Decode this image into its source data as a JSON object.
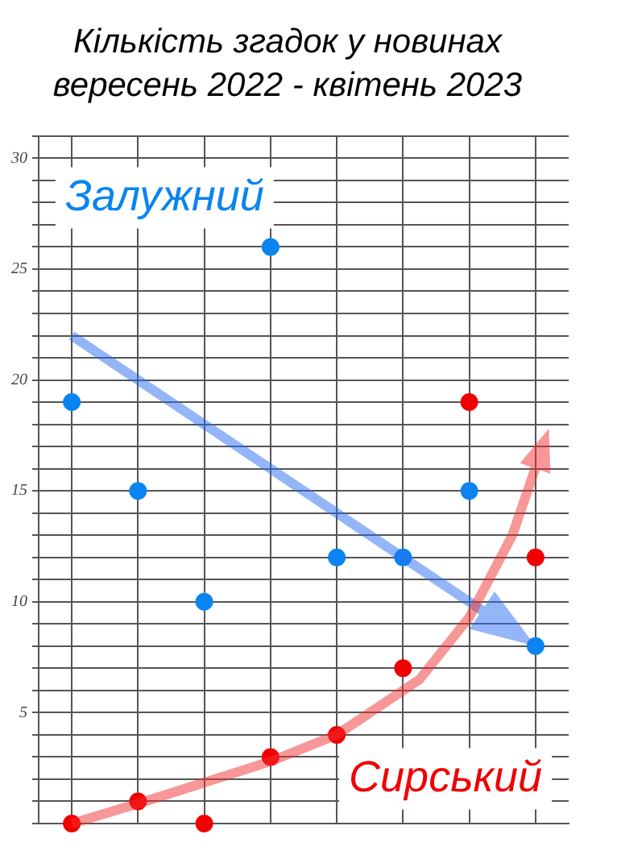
{
  "chart_data": {
    "type": "scatter",
    "title": "Кількість згадок у новинах",
    "subtitle": "вересень 2022 - квітень 2023",
    "categories": [
      null,
      null,
      null,
      null,
      null,
      null,
      null,
      null
    ],
    "series": [
      {
        "name": "Залужний",
        "color": "#0a84f0",
        "values": [
          19,
          15,
          10,
          26,
          12,
          12,
          15,
          8
        ]
      },
      {
        "name": "Сирський",
        "color": "#f00000",
        "values": [
          0,
          1,
          0,
          3,
          4,
          7,
          19,
          12
        ]
      }
    ],
    "ylim": [
      0,
      31
    ],
    "yticks": [
      {
        "value": 0,
        "label": null
      },
      {
        "value": 1,
        "label": null
      },
      {
        "value": 2,
        "label": null
      },
      {
        "value": 3,
        "label": null
      },
      {
        "value": 4,
        "label": null
      },
      5,
      {
        "value": 6,
        "label": null
      },
      {
        "value": 7,
        "label": null
      },
      {
        "value": 8,
        "label": null
      },
      {
        "value": 9,
        "label": null
      },
      10,
      {
        "value": 11,
        "label": null
      },
      {
        "value": 12,
        "label": null
      },
      {
        "value": 13,
        "label": null
      },
      {
        "value": 14,
        "label": null
      },
      15,
      {
        "value": 16,
        "label": null
      },
      {
        "value": 17,
        "label": null
      },
      {
        "value": 18,
        "label": null
      },
      {
        "value": 19,
        "label": null
      },
      20,
      {
        "value": 21,
        "label": null
      },
      {
        "value": 22,
        "label": null
      },
      {
        "value": 23,
        "label": null
      },
      {
        "value": 24,
        "label": null
      },
      25,
      {
        "value": 26,
        "label": null
      },
      {
        "value": 27,
        "label": null
      },
      {
        "value": 28,
        "label": null
      },
      {
        "value": 29,
        "label": null
      },
      30,
      {
        "value": 31,
        "label": null
      }
    ],
    "grid": true,
    "marker": "circle",
    "tick_labels": "y"
  }
}
